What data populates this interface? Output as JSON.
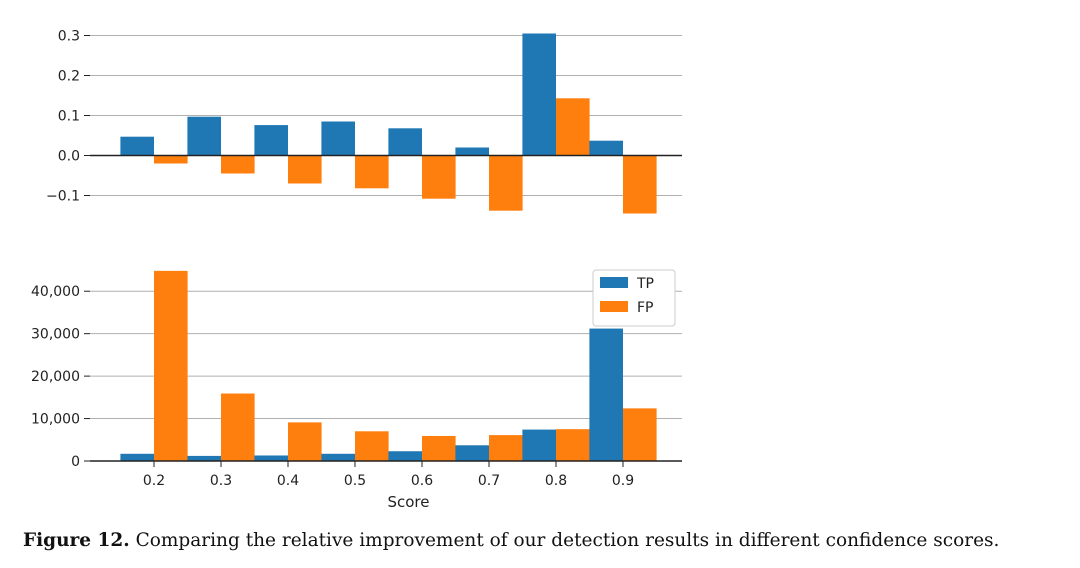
{
  "chart_data": [
    {
      "type": "bar",
      "categories": [
        "0.2",
        "0.3",
        "0.4",
        "0.5",
        "0.6",
        "0.7",
        "0.8",
        "0.9"
      ],
      "series": [
        {
          "values": [
            0.047,
            0.097,
            0.076,
            0.085,
            0.068,
            0.02,
            0.305,
            0.037
          ]
        },
        {
          "values": [
            -0.02,
            -0.045,
            -0.07,
            -0.082,
            -0.108,
            -0.138,
            0.143,
            -0.145
          ]
        }
      ],
      "ylim": [
        -0.14,
        0.3
      ],
      "yticks": [
        -0.1,
        0.0,
        0.1,
        0.2,
        0.3
      ],
      "ytick_labels": [
        "−0.1",
        "0.0",
        "0.1",
        "0.2",
        "0.3"
      ],
      "grid": "horizontal",
      "xlabel": "",
      "ylabel": ""
    },
    {
      "type": "bar",
      "categories": [
        "0.2",
        "0.3",
        "0.4",
        "0.5",
        "0.6",
        "0.7",
        "0.8",
        "0.9"
      ],
      "series": [
        {
          "name": "TP",
          "values": [
            1700,
            1200,
            1300,
            1700,
            2300,
            3700,
            7400,
            31200
          ]
        },
        {
          "name": "FP",
          "values": [
            44800,
            15900,
            9100,
            7000,
            5900,
            6100,
            7500,
            12400
          ]
        }
      ],
      "ylim": [
        0,
        45000
      ],
      "yticks": [
        0,
        10000,
        20000,
        30000,
        40000
      ],
      "ytick_labels": [
        "0",
        "10,000",
        "20,000",
        "30,000",
        "40,000"
      ],
      "grid": "horizontal",
      "legend": "top-right",
      "xlabel": "Score",
      "ylabel": ""
    }
  ],
  "colors": {
    "tp": "#1f77b4",
    "fp": "#ff7f0e",
    "grid": "#b0b0b0",
    "axis": "#222222"
  },
  "caption": {
    "label": "Figure 12.",
    "text": " Comparing the relative improvement of our detection results in different confidence scores."
  }
}
